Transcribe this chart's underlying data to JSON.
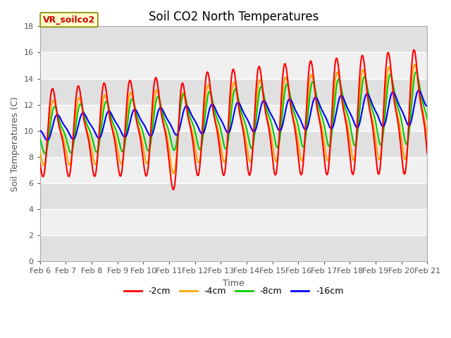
{
  "title": "Soil CO2 North Temperatures",
  "xlabel": "Time",
  "ylabel": "Soil Temperatures (C)",
  "ylim": [
    0,
    18
  ],
  "date_labels": [
    "Feb 6",
    "Feb 7",
    "Feb 8",
    "Feb 9",
    "Feb 10",
    "Feb 11",
    "Feb 12",
    "Feb 13",
    "Feb 14",
    "Feb 15",
    "Feb 16",
    "Feb 17",
    "Feb 18",
    "Feb 19",
    "Feb 20",
    "Feb 21"
  ],
  "legend_labels": [
    "-2cm",
    "-4cm",
    "-8cm",
    "-16cm"
  ],
  "line_colors": [
    "#ff0000",
    "#ffa500",
    "#00cc00",
    "#0000ff"
  ],
  "annotation_text": "VR_soilco2",
  "annotation_box_facecolor": "#ffffcc",
  "annotation_box_edgecolor": "#888800",
  "annotation_text_color": "#cc0000",
  "background_color": "#ffffff",
  "plot_bg_light": "#f0f0f0",
  "plot_bg_dark": "#e0e0e0",
  "grid_color": "#cccccc",
  "title_fontsize": 12,
  "axis_label_fontsize": 9,
  "tick_label_fontsize": 8,
  "legend_fontsize": 9
}
